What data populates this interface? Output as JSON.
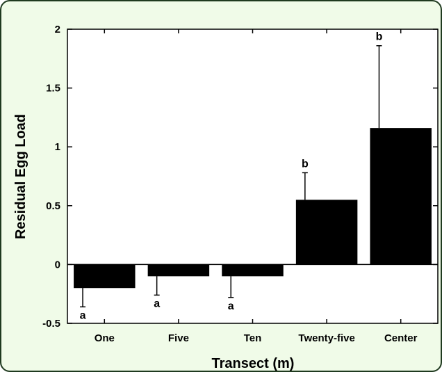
{
  "chart_data": {
    "type": "bar",
    "xlabel": "Transect (m)",
    "ylabel": "Residual Egg Load",
    "ylim": [
      -0.5,
      2
    ],
    "yticks": [
      -0.5,
      0,
      0.5,
      1,
      1.5,
      2
    ],
    "ytick_labels": [
      "-0.5",
      "0",
      "0.5",
      "1",
      "1.5",
      "2"
    ],
    "categories": [
      "One",
      "Five",
      "Ten",
      "Twenty-five",
      "Center"
    ],
    "values": [
      -0.2,
      -0.1,
      -0.1,
      0.55,
      1.16
    ],
    "error": [
      0.16,
      0.16,
      0.18,
      0.23,
      0.7
    ],
    "significance": [
      "a",
      "a",
      "a",
      "b",
      "b"
    ],
    "bar_color": "#000000",
    "grid": false
  },
  "colors": {
    "panel_background": "#f0fbe8",
    "panel_border": "#1f3a1f"
  }
}
